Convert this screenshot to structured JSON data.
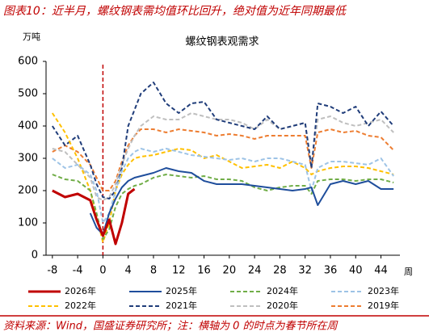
{
  "header": "图表10：近半月，螺纹钢表需均值环比回升，绝对值为近年同期最低",
  "source": "资料来源：Wind，国盛证券研究所；注：横轴为 0 的时点为春节所在周",
  "chart_data": {
    "type": "line",
    "title": "螺纹钢表观需求",
    "y_unit": "万吨",
    "x_unit": "周",
    "xlim": [
      -9,
      47
    ],
    "xticks": [
      -8,
      -4,
      0,
      4,
      8,
      12,
      16,
      20,
      24,
      28,
      32,
      36,
      40,
      44
    ],
    "ylim": [
      0,
      600
    ],
    "yticks": [
      0,
      100,
      200,
      300,
      400,
      500,
      600
    ],
    "reference_line": {
      "x": 0,
      "color": "#c00000"
    },
    "x": [
      -8,
      -6,
      -4,
      -2,
      -1,
      0,
      1,
      2,
      3,
      4,
      5,
      6,
      8,
      10,
      12,
      14,
      16,
      18,
      20,
      22,
      24,
      26,
      28,
      30,
      32,
      33,
      34,
      36,
      38,
      40,
      42,
      44,
      46
    ],
    "series": [
      {
        "name": "2026年",
        "color": "#c00000",
        "style": "solid",
        "width": 3,
        "values": [
          200,
          180,
          190,
          170,
          110,
          60,
          110,
          35,
          100,
          190,
          205,
          null,
          null,
          null,
          null,
          null,
          null,
          null,
          null,
          null,
          null,
          null,
          null,
          null,
          null,
          null,
          null,
          null,
          null,
          null,
          null,
          null,
          null
        ]
      },
      {
        "name": "2025年",
        "color": "#1f4e9c",
        "style": "solid",
        "width": 2,
        "values": [
          null,
          null,
          null,
          130,
          85,
          65,
          130,
          175,
          210,
          230,
          240,
          245,
          255,
          270,
          260,
          255,
          230,
          220,
          220,
          220,
          215,
          210,
          205,
          200,
          205,
          210,
          155,
          220,
          230,
          220,
          230,
          205,
          205
        ]
      },
      {
        "name": "2024年",
        "color": "#70ad47",
        "style": "dashed",
        "width": 2,
        "values": [
          250,
          235,
          230,
          200,
          130,
          50,
          80,
          150,
          190,
          205,
          215,
          220,
          240,
          250,
          245,
          240,
          245,
          235,
          235,
          230,
          210,
          200,
          210,
          215,
          215,
          190,
          230,
          235,
          235,
          230,
          235,
          235,
          225
        ]
      },
      {
        "name": "2023年",
        "color": "#9dc3e6",
        "style": "dashed",
        "width": 2,
        "values": [
          300,
          270,
          280,
          250,
          200,
          100,
          130,
          200,
          260,
          300,
          320,
          330,
          320,
          330,
          320,
          310,
          305,
          300,
          295,
          300,
          290,
          300,
          300,
          290,
          280,
          200,
          270,
          290,
          290,
          285,
          280,
          300,
          245
        ]
      },
      {
        "name": "2022年",
        "color": "#ffc000",
        "style": "dashed",
        "width": 2,
        "values": [
          440,
          380,
          300,
          200,
          120,
          40,
          100,
          200,
          250,
          280,
          300,
          305,
          310,
          320,
          330,
          325,
          300,
          310,
          290,
          270,
          275,
          280,
          270,
          290,
          270,
          250,
          260,
          270,
          275,
          275,
          270,
          260,
          250
        ]
      },
      {
        "name": "2021年",
        "color": "#203d7a",
        "style": "dashed",
        "width": 2,
        "values": [
          400,
          340,
          370,
          280,
          220,
          180,
          175,
          200,
          270,
          400,
          450,
          500,
          535,
          470,
          440,
          470,
          475,
          420,
          410,
          400,
          390,
          430,
          390,
          400,
          410,
          270,
          470,
          460,
          440,
          460,
          400,
          445,
          400
        ]
      },
      {
        "name": "2020年",
        "color": "#bfbfbf",
        "style": "dashed",
        "width": 2,
        "values": [
          330,
          320,
          280,
          240,
          180,
          170,
          180,
          220,
          280,
          330,
          370,
          400,
          430,
          420,
          420,
          440,
          430,
          420,
          420,
          410,
          390,
          420,
          390,
          400,
          410,
          280,
          420,
          430,
          410,
          400,
          410,
          420,
          380
        ]
      },
      {
        "name": "2019年",
        "color": "#ed7d31",
        "style": "dashed",
        "width": 2,
        "values": [
          320,
          340,
          320,
          280,
          240,
          200,
          200,
          230,
          290,
          340,
          370,
          390,
          390,
          380,
          390,
          385,
          380,
          370,
          375,
          370,
          360,
          370,
          370,
          370,
          370,
          270,
          380,
          390,
          380,
          385,
          370,
          365,
          325
        ]
      }
    ]
  }
}
